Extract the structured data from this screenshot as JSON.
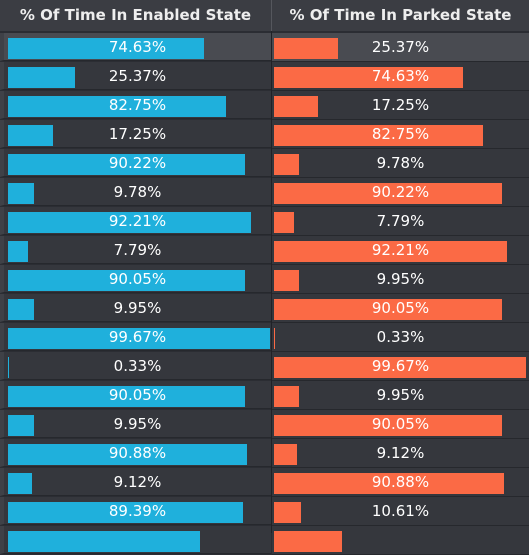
{
  "table": {
    "columns": [
      "% Of Time In Enabled State",
      "% Of Time In Parked State"
    ],
    "colors": {
      "enabled": "#1fb0dc",
      "parked": "#fb6a45"
    },
    "selected_row": 0,
    "rows": [
      {
        "enabled": "74.63%",
        "parked": "25.37%",
        "enabled_fraction": 0.7463,
        "parked_fraction": 0.2537
      },
      {
        "enabled": "25.37%",
        "parked": "74.63%",
        "enabled_fraction": 0.2537,
        "parked_fraction": 0.7463
      },
      {
        "enabled": "82.75%",
        "parked": "17.25%",
        "enabled_fraction": 0.8275,
        "parked_fraction": 0.1725
      },
      {
        "enabled": "17.25%",
        "parked": "82.75%",
        "enabled_fraction": 0.1725,
        "parked_fraction": 0.8275
      },
      {
        "enabled": "90.22%",
        "parked": "9.78%",
        "enabled_fraction": 0.9022,
        "parked_fraction": 0.0978
      },
      {
        "enabled": "9.78%",
        "parked": "90.22%",
        "enabled_fraction": 0.0978,
        "parked_fraction": 0.9022
      },
      {
        "enabled": "92.21%",
        "parked": "7.79%",
        "enabled_fraction": 0.9221,
        "parked_fraction": 0.0779
      },
      {
        "enabled": "7.79%",
        "parked": "92.21%",
        "enabled_fraction": 0.0779,
        "parked_fraction": 0.9221
      },
      {
        "enabled": "90.05%",
        "parked": "9.95%",
        "enabled_fraction": 0.9005,
        "parked_fraction": 0.0995
      },
      {
        "enabled": "9.95%",
        "parked": "90.05%",
        "enabled_fraction": 0.0995,
        "parked_fraction": 0.9005
      },
      {
        "enabled": "99.67%",
        "parked": "0.33%",
        "enabled_fraction": 0.9967,
        "parked_fraction": 0.0033
      },
      {
        "enabled": "0.33%",
        "parked": "99.67%",
        "enabled_fraction": 0.0033,
        "parked_fraction": 0.9967
      },
      {
        "enabled": "90.05%",
        "parked": "9.95%",
        "enabled_fraction": 0.9005,
        "parked_fraction": 0.0995
      },
      {
        "enabled": "9.95%",
        "parked": "90.05%",
        "enabled_fraction": 0.0995,
        "parked_fraction": 0.9005
      },
      {
        "enabled": "90.88%",
        "parked": "9.12%",
        "enabled_fraction": 0.9088,
        "parked_fraction": 0.0912
      },
      {
        "enabled": "9.12%",
        "parked": "90.88%",
        "enabled_fraction": 0.0912,
        "parked_fraction": 0.9088
      },
      {
        "enabled": "89.39%",
        "parked": "10.61%",
        "enabled_fraction": 0.8939,
        "parked_fraction": 0.1061
      },
      {
        "enabled": "",
        "parked": "",
        "enabled_fraction": 0.73,
        "parked_fraction": 0.27
      }
    ]
  }
}
